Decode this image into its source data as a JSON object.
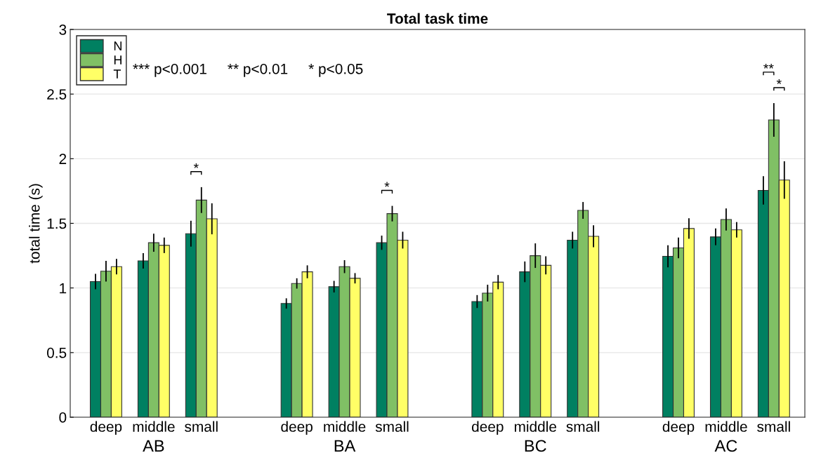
{
  "chart_data": {
    "type": "bar",
    "title": "Total task time",
    "ylabel": "total time (s)",
    "categories": [
      "deep",
      "middle",
      "small",
      "deep",
      "middle",
      "small",
      "deep",
      "middle",
      "small",
      "deep",
      "middle",
      "small"
    ],
    "series": [
      {
        "name": "N",
        "color": "#008061",
        "values": [
          1.05,
          1.21,
          1.42,
          0.88,
          1.01,
          1.35,
          0.895,
          1.125,
          1.37,
          1.245,
          1.395,
          1.755
        ],
        "errors": [
          0.06,
          0.06,
          0.1,
          0.04,
          0.045,
          0.055,
          0.05,
          0.08,
          0.065,
          0.085,
          0.065,
          0.11
        ]
      },
      {
        "name": "H",
        "color": "#80c065",
        "values": [
          1.13,
          1.35,
          1.68,
          1.035,
          1.165,
          1.575,
          0.96,
          1.25,
          1.6,
          1.31,
          1.53,
          2.3
        ],
        "errors": [
          0.08,
          0.07,
          0.1,
          0.04,
          0.05,
          0.06,
          0.065,
          0.095,
          0.065,
          0.08,
          0.085,
          0.13
        ]
      },
      {
        "name": "T",
        "color": "#ffff66",
        "values": [
          1.165,
          1.33,
          1.535,
          1.125,
          1.075,
          1.37,
          1.045,
          1.175,
          1.4,
          1.46,
          1.45,
          1.835
        ],
        "errors": [
          0.06,
          0.06,
          0.12,
          0.05,
          0.04,
          0.065,
          0.055,
          0.07,
          0.085,
          0.08,
          0.06,
          0.145
        ]
      }
    ],
    "ylim": [
      0,
      3
    ],
    "yticks": [
      0,
      0.5,
      1,
      1.5,
      2,
      2.5,
      3
    ],
    "grid": "y",
    "legend": "top left",
    "annotations": [
      "*** p<0.001     ** p<0.01     * p<0.05",
      "AB",
      "BA",
      "BC",
      "AC",
      "*",
      "*",
      "**",
      "*"
    ]
  }
}
